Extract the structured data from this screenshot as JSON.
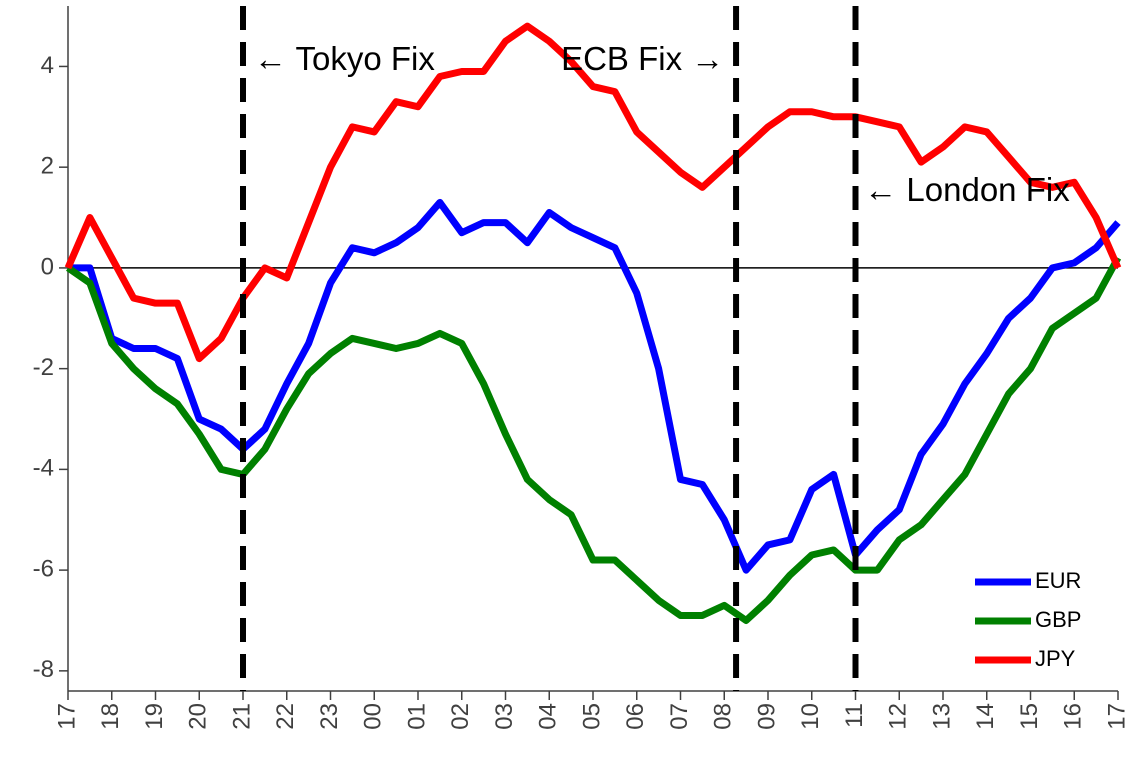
{
  "chart_data": {
    "type": "line",
    "x": [
      0,
      0.5,
      1,
      1.5,
      2,
      2.5,
      3,
      3.5,
      4,
      4.5,
      5,
      5.5,
      6,
      6.5,
      7,
      7.5,
      8,
      8.5,
      9,
      9.5,
      10,
      10.5,
      11,
      11.5,
      12,
      12.5,
      13,
      13.5,
      14,
      14.5,
      15,
      15.5,
      16,
      16.5,
      17,
      17.5,
      18,
      18.5,
      19,
      19.5,
      20,
      20.5,
      21,
      21.5,
      22,
      22.5,
      23,
      23.5,
      24
    ],
    "series": [
      {
        "name": "EUR",
        "color": "#0000ff",
        "values": [
          0,
          0,
          -1.4,
          -1.6,
          -1.6,
          -1.8,
          -3.0,
          -3.2,
          -3.6,
          -3.2,
          -2.3,
          -1.5,
          -0.3,
          0.4,
          0.3,
          0.5,
          0.8,
          1.3,
          0.7,
          0.9,
          0.9,
          0.5,
          1.1,
          0.8,
          0.6,
          0.4,
          -0.5,
          -2.0,
          -4.2,
          -4.3,
          -5.0,
          -6.0,
          -5.5,
          -5.4,
          -4.4,
          -4.1,
          -5.7,
          -5.2,
          -4.8,
          -3.7,
          -3.1,
          -2.3,
          -1.7,
          -1.0,
          -0.6,
          0.0,
          0.1,
          0.4,
          0.9
        ]
      },
      {
        "name": "GBP",
        "color": "#008000",
        "values": [
          0,
          -0.3,
          -1.5,
          -2.0,
          -2.4,
          -2.7,
          -3.3,
          -4.0,
          -4.1,
          -3.6,
          -2.8,
          -2.1,
          -1.7,
          -1.4,
          -1.5,
          -1.6,
          -1.5,
          -1.3,
          -1.5,
          -2.3,
          -3.3,
          -4.2,
          -4.6,
          -4.9,
          -5.8,
          -5.8,
          -6.2,
          -6.6,
          -6.9,
          -6.9,
          -6.7,
          -7.0,
          -6.6,
          -6.1,
          -5.7,
          -5.6,
          -6.0,
          -6.0,
          -5.4,
          -5.1,
          -4.6,
          -4.1,
          -3.3,
          -2.5,
          -2.0,
          -1.2,
          -0.9,
          -0.6,
          0.2
        ]
      },
      {
        "name": "JPY",
        "color": "#ff0000",
        "values": [
          0,
          1.0,
          0.2,
          -0.6,
          -0.7,
          -0.7,
          -1.8,
          -1.4,
          -0.6,
          0.0,
          -0.2,
          0.9,
          2.0,
          2.8,
          2.7,
          3.3,
          3.2,
          3.8,
          3.9,
          3.9,
          4.5,
          4.8,
          4.5,
          4.1,
          3.6,
          3.5,
          2.7,
          2.3,
          1.9,
          1.6,
          2.0,
          2.4,
          2.8,
          3.1,
          3.1,
          3.0,
          3.0,
          2.9,
          2.8,
          2.1,
          2.4,
          2.8,
          2.7,
          2.2,
          1.7,
          1.6,
          1.7,
          1.0,
          0.0
        ]
      }
    ],
    "xlim": [
      0,
      24
    ],
    "xticks": [
      {
        "value": 0,
        "label": "17"
      },
      {
        "value": 1,
        "label": "18"
      },
      {
        "value": 2,
        "label": "19"
      },
      {
        "value": 3,
        "label": "20"
      },
      {
        "value": 4,
        "label": "21"
      },
      {
        "value": 5,
        "label": "22"
      },
      {
        "value": 6,
        "label": "23"
      },
      {
        "value": 7,
        "label": "00"
      },
      {
        "value": 8,
        "label": "01"
      },
      {
        "value": 9,
        "label": "02"
      },
      {
        "value": 10,
        "label": "03"
      },
      {
        "value": 11,
        "label": "04"
      },
      {
        "value": 12,
        "label": "05"
      },
      {
        "value": 13,
        "label": "06"
      },
      {
        "value": 14,
        "label": "07"
      },
      {
        "value": 15,
        "label": "08"
      },
      {
        "value": 16,
        "label": "09"
      },
      {
        "value": 17,
        "label": "10"
      },
      {
        "value": 18,
        "label": "11"
      },
      {
        "value": 19,
        "label": "12"
      },
      {
        "value": 20,
        "label": "13"
      },
      {
        "value": 21,
        "label": "14"
      },
      {
        "value": 22,
        "label": "15"
      },
      {
        "value": 23,
        "label": "16"
      },
      {
        "value": 24,
        "label": "17"
      }
    ],
    "ylim": [
      -8.4,
      5.2
    ],
    "yticks": [
      -8,
      -6,
      -4,
      -2,
      0,
      2,
      4
    ],
    "hline": 0,
    "vlines": [
      4,
      15.27,
      18
    ],
    "annotations": [
      {
        "text": "← Tokyo Fix",
        "x": 4.25,
        "y": 4.1,
        "anchor": "start"
      },
      {
        "text": "ECB Fix →",
        "x": 15.0,
        "y": 4.1,
        "anchor": "end"
      },
      {
        "text": "← London Fix",
        "x": 18.2,
        "y": 1.5,
        "anchor": "start"
      }
    ],
    "legend": "lower right"
  }
}
